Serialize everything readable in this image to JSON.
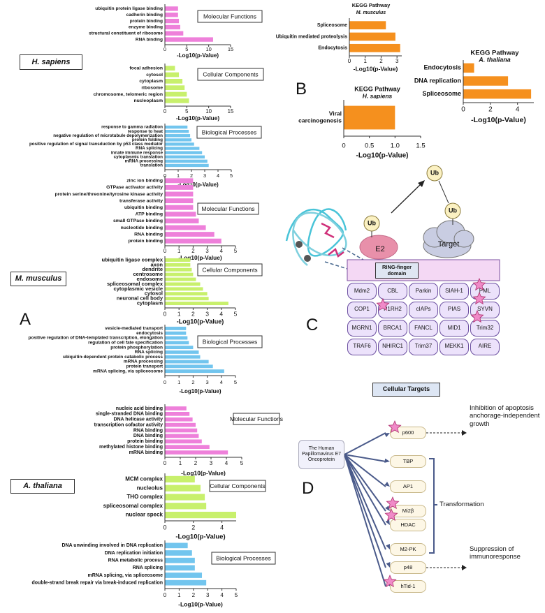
{
  "chart_data": [
    {
      "type": "bar",
      "orientation": "horizontal",
      "title": "Molecular Functions",
      "categories": [
        "ubiquitin protein ligase binding",
        "cadherin binding",
        "protein binding",
        "enzyme binding",
        "structural constituent of ribosome",
        "RNA binding"
      ],
      "values": [
        3,
        3,
        3.2,
        3.5,
        4.2,
        11
      ],
      "color": "#ee80da",
      "xlim": [
        0,
        15
      ],
      "xticks": [
        0,
        5,
        10,
        15
      ],
      "xlabel": "-Log10(p-Value)"
    },
    {
      "type": "bar",
      "orientation": "horizontal",
      "title": "Cellular Components",
      "categories": [
        "focal adhesion",
        "cytosol",
        "cytoplasm",
        "ribosome",
        "chromosome, telomeric region",
        "nucleoplasm"
      ],
      "values": [
        2.3,
        3.2,
        4,
        4.5,
        5,
        5.5
      ],
      "color": "#c8f06c",
      "xlim": [
        0,
        15
      ],
      "xticks": [
        0,
        5,
        10,
        15
      ],
      "xlabel": "-Log10(p-Value)"
    },
    {
      "type": "bar",
      "orientation": "horizontal",
      "title": "Biological Processes",
      "categories": [
        "response to gamma radiation",
        "response to heat",
        "negative regulation of microtubule depolymerization",
        "protein folding",
        "positive regulation of signal transduction by p53 class mediator",
        "RNA splicing",
        "innate immune response",
        "cytoplasmic translation",
        "mRNA processing",
        "translation"
      ],
      "values": [
        1.7,
        1.8,
        1.9,
        2.0,
        2.2,
        2.6,
        2.8,
        3.0,
        3.2,
        3.3
      ],
      "color": "#72c5ee",
      "xlim": [
        0,
        5
      ],
      "xticks": [
        0,
        1,
        2,
        3,
        4,
        5
      ],
      "xlabel": "-Log10(p-Value)"
    },
    {
      "type": "bar",
      "orientation": "horizontal",
      "title": "Molecular Functions",
      "categories": [
        "zinc ion binding",
        "GTPase activator activity",
        "protein serine/threonine/tyrosine kinase activity",
        "transferase activity",
        "ubiquitin binding",
        "ATP binding",
        "small GTPase binding",
        "nucleotide binding",
        "RNA binding",
        "protein binding"
      ],
      "values": [
        2,
        2,
        2,
        2,
        2,
        2.2,
        2.4,
        2.9,
        3.5,
        4
      ],
      "color": "#ee80da",
      "xlim": [
        0,
        5
      ],
      "xticks": [
        0,
        1,
        2,
        3,
        4,
        5
      ],
      "xlabel": "-Log10(p-Value)"
    },
    {
      "type": "bar",
      "orientation": "horizontal",
      "title": "Cellular Components",
      "categories": [
        "ubiquitin ligase complex",
        "axon",
        "dendrite",
        "centrosome",
        "endosome",
        "spliceosomal complex",
        "cytoplasmic vesicle",
        "cytosol",
        "neuronal cell body",
        "cytoplasm"
      ],
      "values": [
        1.8,
        1.8,
        1.9,
        2.0,
        2.2,
        2.5,
        2.7,
        3.0,
        3.1,
        4.5
      ],
      "color": "#c8f06c",
      "xlim": [
        0,
        5
      ],
      "xticks": [
        0,
        1,
        2,
        3,
        4,
        5
      ],
      "xlabel": "-Log10(p-Value)"
    },
    {
      "type": "bar",
      "orientation": "horizontal",
      "title": "Biological Processes",
      "categories": [
        "vesicle-mediated transport",
        "endocytosis",
        "positive regulation of DNA-templated transcription, elongation",
        "regulation of cell fate specification",
        "protein phosphorylation",
        "RNA splicing",
        "ubiquitin-dependent protein catabolic process",
        "mRNA processing",
        "protein transport",
        "mRNA splicing, via spliceosome"
      ],
      "values": [
        1.5,
        1.5,
        1.6,
        1.7,
        2,
        2.4,
        2.5,
        3.1,
        3.4,
        4.2
      ],
      "color": "#72c5ee",
      "xlim": [
        0,
        5
      ],
      "xticks": [
        0,
        1,
        2,
        3,
        4,
        5
      ],
      "xlabel": "-Log10(p-Value)"
    },
    {
      "type": "bar",
      "orientation": "horizontal",
      "title": "Molecular Functions",
      "categories": [
        "nucleic acid binding",
        "single-stranded DNA binding",
        "DNA helicase activity",
        "transcription cofactor activity",
        "RNA binding",
        "DNA binding",
        "protein binding",
        "methylated histone binding",
        "mRNA binding"
      ],
      "values": [
        1.4,
        1.6,
        1.8,
        2.0,
        2.1,
        2.2,
        2.4,
        2.9,
        4.1
      ],
      "color": "#ee80da",
      "xlim": [
        0,
        5
      ],
      "xticks": [
        0,
        1,
        2,
        3,
        4,
        5
      ],
      "xlabel": "-Log10(p-Value)"
    },
    {
      "type": "bar",
      "orientation": "horizontal",
      "title": "Cellular Components",
      "categories": [
        "MCM complex",
        "nucleolus",
        "THO complex",
        "spliceosomal complex",
        "nuclear speck"
      ],
      "values": [
        2.1,
        2.5,
        2.8,
        2.9,
        5
      ],
      "color": "#c8f06c",
      "xlim": [
        0,
        5
      ],
      "xticks": [
        0,
        2,
        4
      ],
      "xlabel": "-Log10(p-Value)"
    },
    {
      "type": "bar",
      "orientation": "horizontal",
      "title": "Biological Processes",
      "categories": [
        "DNA unwinding involved in DNA replication",
        "DNA replication initiation",
        "RNA metabolic process",
        "RNA splicing",
        "mRNA splicing, via spliceosome",
        "double-strand break repair via break-induced replication"
      ],
      "values": [
        1.6,
        1.9,
        2.1,
        2.1,
        2.6,
        2.9
      ],
      "color": "#72c5ee",
      "xlim": [
        0,
        5
      ],
      "xticks": [
        0,
        1,
        2,
        3,
        4,
        5
      ],
      "xlabel": "-Log10(p-Value)"
    },
    {
      "type": "bar",
      "orientation": "horizontal",
      "title": "KEGG Pathway",
      "subtitle": "M. musculus",
      "categories": [
        "Spliceosome",
        "Ubiquitin mediated proteolysis",
        "Endocytosis"
      ],
      "values": [
        2.3,
        2.9,
        3.2
      ],
      "color": "#f5901e",
      "xlim": [
        0,
        3.3
      ],
      "xticks": [
        0,
        1,
        2,
        3
      ],
      "xlabel": "-Log10(p-Value)"
    },
    {
      "type": "bar",
      "orientation": "horizontal",
      "title": "KEGG Pathway",
      "subtitle": "A. thaliana",
      "categories": [
        "Endocytosis",
        "DNA replication",
        "Spliceosome"
      ],
      "values": [
        0.8,
        3.3,
        5.0
      ],
      "color": "#f5901e",
      "xlim": [
        0,
        5.2
      ],
      "xticks": [
        0,
        2,
        4
      ],
      "xlabel": "-Log10(p-Value)"
    },
    {
      "type": "bar",
      "orientation": "horizontal",
      "title": "KEGG Pathway",
      "subtitle": "H. sapiens",
      "categories": [
        "Viral carcinogenesis"
      ],
      "values": [
        1.0
      ],
      "color": "#f5901e",
      "xlim": [
        0,
        1.5
      ],
      "xticks": [
        0,
        0.5,
        {
          "value": 1,
          "label": "1.0"
        },
        1.5
      ],
      "xlabel": "-Log10(p-Value)"
    }
  ],
  "species": [
    "H. sapiens",
    "M. musculus",
    "A. thaliana"
  ],
  "panels": [
    "A",
    "B",
    "C",
    "D"
  ],
  "ring": {
    "ub": [
      "Ub",
      "Ub",
      "Ub"
    ],
    "e2": "E2",
    "target": "Target",
    "domain": "RING-finger domain",
    "ligases": [
      "Mdm2",
      "CBL",
      "Parkin",
      "SIAH-1",
      "PML",
      "COP1",
      "P1RH2",
      "cIAPs",
      "PIAS",
      "SYVN",
      "MGRN1",
      "BRCA1",
      "FANCL",
      "MID1",
      "Trim32",
      "TRAF6",
      "NHIRC1",
      "Trim37",
      "MEKK1",
      "AIRE"
    ]
  },
  "e7": {
    "title": "Cellular Targets",
    "source": "The Human Papillomavirus E7 Oncoprotein",
    "targets": [
      "p600",
      "TBP",
      "AP1",
      "Mi2β",
      "HDAC",
      "M2-PK",
      "p48",
      "hTid-1"
    ],
    "effects": [
      "Inhibition of apoptosis anchorage-independent growth",
      "Transformation",
      "Suppression of immunoresponse"
    ]
  }
}
